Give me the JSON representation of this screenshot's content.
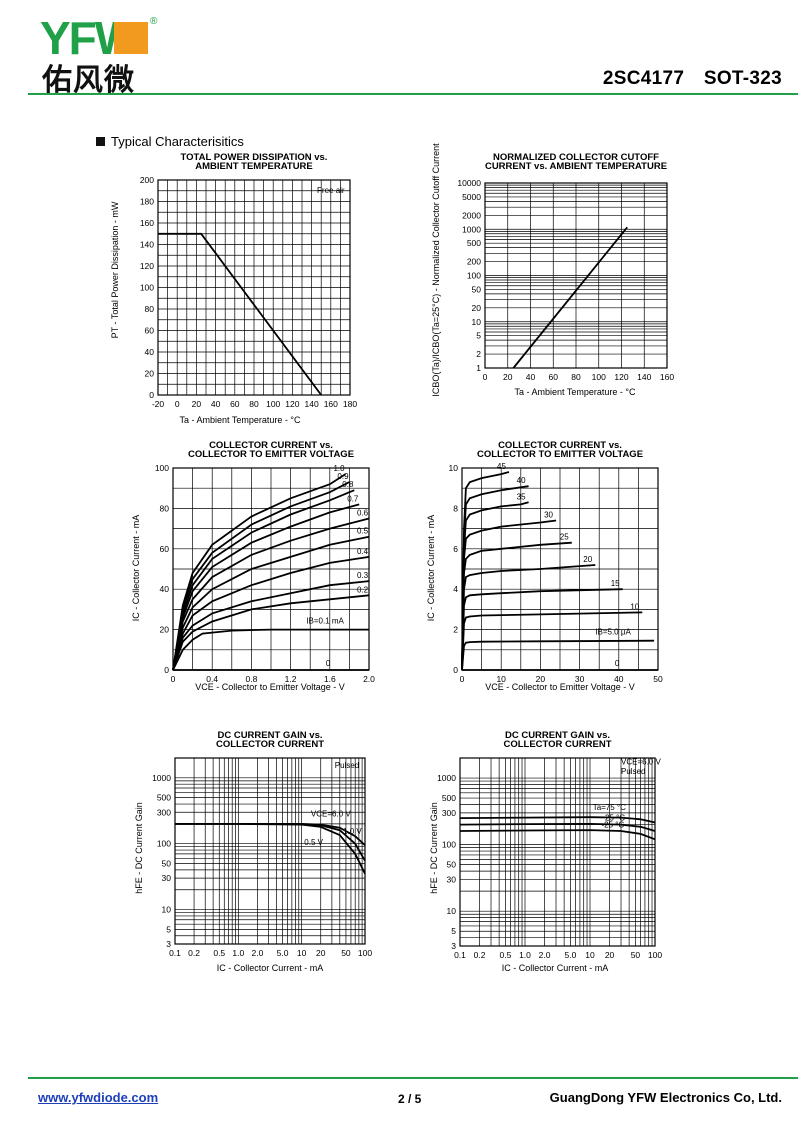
{
  "header": {
    "logo_latin": "YFW",
    "logo_cjk": "佑风微",
    "logo_mark": "®",
    "part": "2SC4177",
    "package": "SOT-323"
  },
  "section_title": "Typical Characterisitics",
  "colors": {
    "brand_green": "#1fa049",
    "brand_orange": "#f29a1f",
    "link_blue": "#1d3fb8"
  },
  "charts": [
    {
      "id": "pd",
      "title": [
        "TOTAL POWER DISSIPATION vs.",
        "AMBIENT TEMPERATURE"
      ],
      "ylabel": "PT - Total Power Dissipation - mW",
      "xlabel": "Ta - Ambient Temperature - °C",
      "annotations": [
        "Free air"
      ],
      "xticks": [
        "-20",
        "0",
        "20",
        "40",
        "60",
        "80",
        "100",
        "120",
        "140",
        "160",
        "180"
      ],
      "yticks": [
        "0",
        "20",
        "40",
        "60",
        "80",
        "100",
        "120",
        "140",
        "160",
        "180",
        "200"
      ]
    },
    {
      "id": "icbo",
      "title": [
        "NORMALIZED COLLECTOR CUTOFF",
        "CURRENT vs. AMBIENT TEMPERATURE"
      ],
      "ylabel": "ICBO(Ta)/ICBO(Ta=25°C) - Normalized Collector Cutoff Current",
      "xlabel": "Ta - Ambient Temperature - °C",
      "xticks": [
        "0",
        "20",
        "40",
        "60",
        "80",
        "100",
        "120",
        "140",
        "160"
      ],
      "yticks": [
        "1",
        "2",
        "5",
        "10",
        "20",
        "50",
        "100",
        "200",
        "500",
        "1000",
        "2000",
        "5000",
        "10000"
      ]
    },
    {
      "id": "ic_low",
      "title": [
        "COLLECTOR CURRENT vs.",
        "COLLECTOR TO EMITTER VOLTAGE"
      ],
      "ylabel": "IC - Collector Current - mA",
      "xlabel": "VCE - Collector to Emitter Voltage - V",
      "xticks": [
        "0",
        "0.4",
        "0.8",
        "1.2",
        "1.6",
        "2.0"
      ],
      "yticks": [
        "0",
        "20",
        "40",
        "60",
        "80",
        "100"
      ],
      "curve_labels": [
        "1.0",
        "0.9",
        "0.8",
        "0.7",
        "0.6",
        "0.5",
        "0.4",
        "0.3",
        "0.2",
        "IB=0.1 mA",
        "0"
      ]
    },
    {
      "id": "ic_high",
      "title": [
        "COLLECTOR CURRENT vs.",
        "COLLECTOR TO EMITTER VOLTAGE"
      ],
      "ylabel": "IC - Collector Current - mA",
      "xlabel": "VCE - Collector to Emitter Voltage - V",
      "xticks": [
        "0",
        "10",
        "20",
        "30",
        "40",
        "50"
      ],
      "yticks": [
        "0",
        "2",
        "4",
        "6",
        "8",
        "10"
      ],
      "curve_labels": [
        "45",
        "40",
        "35",
        "30",
        "25",
        "20",
        "15",
        "10",
        "IB=5.0 μA",
        "0"
      ]
    },
    {
      "id": "hfe_v",
      "title": [
        "DC CURRENT GAIN vs.",
        "COLLECTOR CURRENT"
      ],
      "ylabel": "hFE - DC Current Gain",
      "xlabel": "IC - Collector Current - mA",
      "annotations": [
        "Pulsed",
        "VCE=6.0 V",
        "1.0 V",
        "0.5 V"
      ],
      "xticks": [
        "0.1",
        "0.2",
        "0.5",
        "1.0",
        "2.0",
        "5.0",
        "10",
        "20",
        "50",
        "100"
      ],
      "yticks": [
        "3",
        "5",
        "10",
        "30",
        "50",
        "100",
        "300",
        "500",
        "1000"
      ]
    },
    {
      "id": "hfe_t",
      "title": [
        "DC CURRENT GAIN vs.",
        "COLLECTOR CURRENT"
      ],
      "ylabel": "hFE - DC Current Gain",
      "xlabel": "IC - Collector Current - mA",
      "annotations": [
        "VCE=6.0 V",
        "Pulsed",
        "Ta=75 °C",
        "25 °C",
        "-25 °C"
      ],
      "xticks": [
        "0.1",
        "0.2",
        "0.5",
        "1.0",
        "2.0",
        "5.0",
        "10",
        "20",
        "50",
        "100"
      ],
      "yticks": [
        "3",
        "5",
        "10",
        "30",
        "50",
        "100",
        "300",
        "500",
        "1000"
      ]
    }
  ],
  "chart_data": [
    {
      "type": "line",
      "title": "TOTAL POWER DISSIPATION vs. AMBIENT TEMPERATURE",
      "xlabel": "Ta - Ambient Temperature - °C",
      "ylabel": "PT - Total Power Dissipation - mW",
      "xlim": [
        -20,
        180
      ],
      "ylim": [
        0,
        200
      ],
      "grid": true,
      "series": [
        {
          "x": [
            -20,
            25,
            150
          ],
          "y": [
            150,
            150,
            0
          ]
        }
      ]
    },
    {
      "type": "line",
      "title": "NORMALIZED COLLECTOR CUTOFF CURRENT vs. AMBIENT TEMPERATURE",
      "xlabel": "Ta - Ambient Temperature - °C",
      "ylabel": "ICBO(Ta)/ICBO(Ta=25°C)",
      "xlim": [
        0,
        160
      ],
      "ylim": [
        1,
        10000
      ],
      "yscale": "log",
      "grid": true,
      "series": [
        {
          "x": [
            25,
            125
          ],
          "y": [
            1,
            1100
          ]
        }
      ]
    },
    {
      "type": "line",
      "title": "COLLECTOR CURRENT vs. COLLECTOR TO EMITTER VOLTAGE",
      "xlabel": "VCE - Collector to Emitter Voltage - V",
      "ylabel": "IC - Collector Current - mA",
      "xlim": [
        0,
        2.0
      ],
      "ylim": [
        0,
        100
      ],
      "grid": true,
      "series": [
        {
          "name": "1.0",
          "x": [
            0,
            0.1,
            0.2,
            0.4,
            0.8,
            1.2,
            1.6,
            1.76
          ],
          "y": [
            0,
            32,
            48,
            62,
            76,
            85,
            92,
            97
          ]
        },
        {
          "name": "0.9",
          "x": [
            0,
            0.1,
            0.2,
            0.4,
            0.8,
            1.2,
            1.6,
            1.8
          ],
          "y": [
            0,
            30,
            45,
            58,
            72,
            81,
            88,
            93
          ]
        },
        {
          "name": "0.8",
          "x": [
            0,
            0.1,
            0.2,
            0.4,
            0.8,
            1.2,
            1.6,
            1.85
          ],
          "y": [
            0,
            28,
            42,
            55,
            68,
            77,
            84,
            89
          ]
        },
        {
          "name": "0.7",
          "x": [
            0,
            0.1,
            0.2,
            0.4,
            0.8,
            1.2,
            1.6,
            1.9
          ],
          "y": [
            0,
            26,
            39,
            51,
            63,
            71,
            78,
            82
          ]
        },
        {
          "name": "0.6",
          "x": [
            0,
            0.1,
            0.2,
            0.4,
            0.8,
            1.2,
            1.6,
            2.0
          ],
          "y": [
            0,
            24,
            35,
            46,
            57,
            64,
            70,
            75
          ]
        },
        {
          "name": "0.5",
          "x": [
            0,
            0.1,
            0.2,
            0.4,
            0.8,
            1.2,
            1.6,
            2.0
          ],
          "y": [
            0,
            21,
            31,
            40,
            50,
            56,
            62,
            66
          ]
        },
        {
          "name": "0.4",
          "x": [
            0,
            0.1,
            0.2,
            0.4,
            0.8,
            1.2,
            1.6,
            2.0
          ],
          "y": [
            0,
            18,
            27,
            34,
            42,
            48,
            53,
            56
          ]
        },
        {
          "name": "0.3",
          "x": [
            0,
            0.1,
            0.2,
            0.4,
            0.8,
            1.2,
            1.6,
            2.0
          ],
          "y": [
            0,
            16,
            22,
            28,
            34,
            38,
            42,
            44
          ]
        },
        {
          "name": "0.2",
          "x": [
            0,
            0.1,
            0.2,
            0.4,
            0.8,
            1.2,
            1.6,
            2.0
          ],
          "y": [
            0,
            14,
            19,
            24,
            30,
            33,
            35,
            37
          ]
        },
        {
          "name": "IB=0.1 mA",
          "x": [
            0,
            0.1,
            0.2,
            0.3,
            0.6,
            1.0,
            1.6,
            2.0
          ],
          "y": [
            0,
            10,
            15,
            18,
            19.5,
            20,
            20,
            20
          ]
        },
        {
          "name": "0",
          "x": [
            0,
            2.0
          ],
          "y": [
            0,
            0
          ]
        }
      ]
    },
    {
      "type": "line",
      "title": "COLLECTOR CURRENT vs. COLLECTOR TO EMITTER VOLTAGE",
      "xlabel": "VCE - Collector to Emitter Voltage - V",
      "ylabel": "IC - Collector Current - mA",
      "xlim": [
        0,
        50
      ],
      "ylim": [
        0,
        10
      ],
      "grid": true,
      "series": [
        {
          "name": "45",
          "x": [
            0,
            0.5,
            1,
            2,
            5,
            10,
            12
          ],
          "y": [
            0,
            7,
            9,
            9.3,
            9.5,
            9.7,
            9.8
          ]
        },
        {
          "name": "40",
          "x": [
            0,
            0.5,
            1,
            2,
            5,
            10,
            17
          ],
          "y": [
            0,
            6.5,
            8.2,
            8.5,
            8.7,
            8.9,
            9.1
          ]
        },
        {
          "name": "35",
          "x": [
            0,
            0.5,
            1,
            2,
            5,
            10,
            15,
            17
          ],
          "y": [
            0,
            6,
            7.4,
            7.7,
            7.9,
            8.1,
            8.2,
            8.3
          ]
        },
        {
          "name": "30",
          "x": [
            0,
            0.5,
            1,
            2,
            5,
            10,
            20,
            24
          ],
          "y": [
            0,
            5.5,
            6.5,
            6.7,
            6.9,
            7.1,
            7.3,
            7.4
          ]
        },
        {
          "name": "25",
          "x": [
            0,
            0.5,
            1,
            2,
            5,
            10,
            20,
            28
          ],
          "y": [
            0,
            4.8,
            5.5,
            5.7,
            5.9,
            6.0,
            6.2,
            6.3
          ]
        },
        {
          "name": "20",
          "x": [
            0,
            0.5,
            1,
            2,
            5,
            10,
            20,
            34
          ],
          "y": [
            0,
            4,
            4.6,
            4.7,
            4.8,
            4.9,
            5.0,
            5.2
          ]
        },
        {
          "name": "15",
          "x": [
            0,
            0.5,
            1,
            2,
            5,
            10,
            20,
            41
          ],
          "y": [
            0,
            3.2,
            3.6,
            3.7,
            3.75,
            3.8,
            3.9,
            4.0
          ]
        },
        {
          "name": "10",
          "x": [
            0,
            0.5,
            1,
            2,
            5,
            20,
            46
          ],
          "y": [
            0,
            2.3,
            2.6,
            2.65,
            2.7,
            2.75,
            2.85
          ]
        },
        {
          "name": "IB=5.0 μA",
          "x": [
            0,
            0.5,
            1,
            2,
            5,
            20,
            49
          ],
          "y": [
            0,
            1.2,
            1.35,
            1.38,
            1.4,
            1.42,
            1.45
          ]
        },
        {
          "name": "0",
          "x": [
            0,
            50
          ],
          "y": [
            0,
            0
          ]
        }
      ]
    },
    {
      "type": "line",
      "title": "DC CURRENT GAIN vs. COLLECTOR CURRENT",
      "xlabel": "IC - Collector Current - mA",
      "ylabel": "hFE - DC Current Gain",
      "xlim": [
        0.1,
        100
      ],
      "ylim": [
        3,
        2000
      ],
      "xscale": "log",
      "yscale": "log",
      "grid": true,
      "series": [
        {
          "name": "VCE=6.0 V",
          "x": [
            0.1,
            1,
            10,
            20,
            40,
            70,
            100
          ],
          "y": [
            200,
            200,
            200,
            195,
            175,
            130,
            95
          ]
        },
        {
          "name": "1.0 V",
          "x": [
            0.1,
            1,
            10,
            20,
            40,
            70,
            100
          ],
          "y": [
            200,
            200,
            198,
            190,
            160,
            100,
            55
          ]
        },
        {
          "name": "0.5 V",
          "x": [
            0.1,
            1,
            10,
            20,
            40,
            70,
            100
          ],
          "y": [
            200,
            200,
            195,
            180,
            135,
            70,
            35
          ]
        }
      ]
    },
    {
      "type": "line",
      "title": "DC CURRENT GAIN vs. COLLECTOR CURRENT",
      "xlabel": "IC - Collector Current - mA",
      "ylabel": "hFE - DC Current Gain",
      "xlim": [
        0.1,
        100
      ],
      "ylim": [
        3,
        2000
      ],
      "xscale": "log",
      "yscale": "log",
      "grid": true,
      "series": [
        {
          "name": "Ta=75 °C",
          "x": [
            0.1,
            1,
            10,
            30,
            60,
            100
          ],
          "y": [
            250,
            255,
            258,
            255,
            240,
            215
          ]
        },
        {
          "name": "25 °C",
          "x": [
            0.1,
            1,
            10,
            30,
            60,
            100
          ],
          "y": [
            200,
            203,
            205,
            200,
            185,
            160
          ]
        },
        {
          "name": "-25 °C",
          "x": [
            0.1,
            1,
            10,
            30,
            60,
            100
          ],
          "y": [
            160,
            163,
            165,
            160,
            145,
            120
          ]
        }
      ]
    }
  ],
  "footer": {
    "url": "www.yfwdiode.com",
    "page": "2 / 5",
    "company": "GuangDong YFW Electronics Co, Ltd."
  }
}
